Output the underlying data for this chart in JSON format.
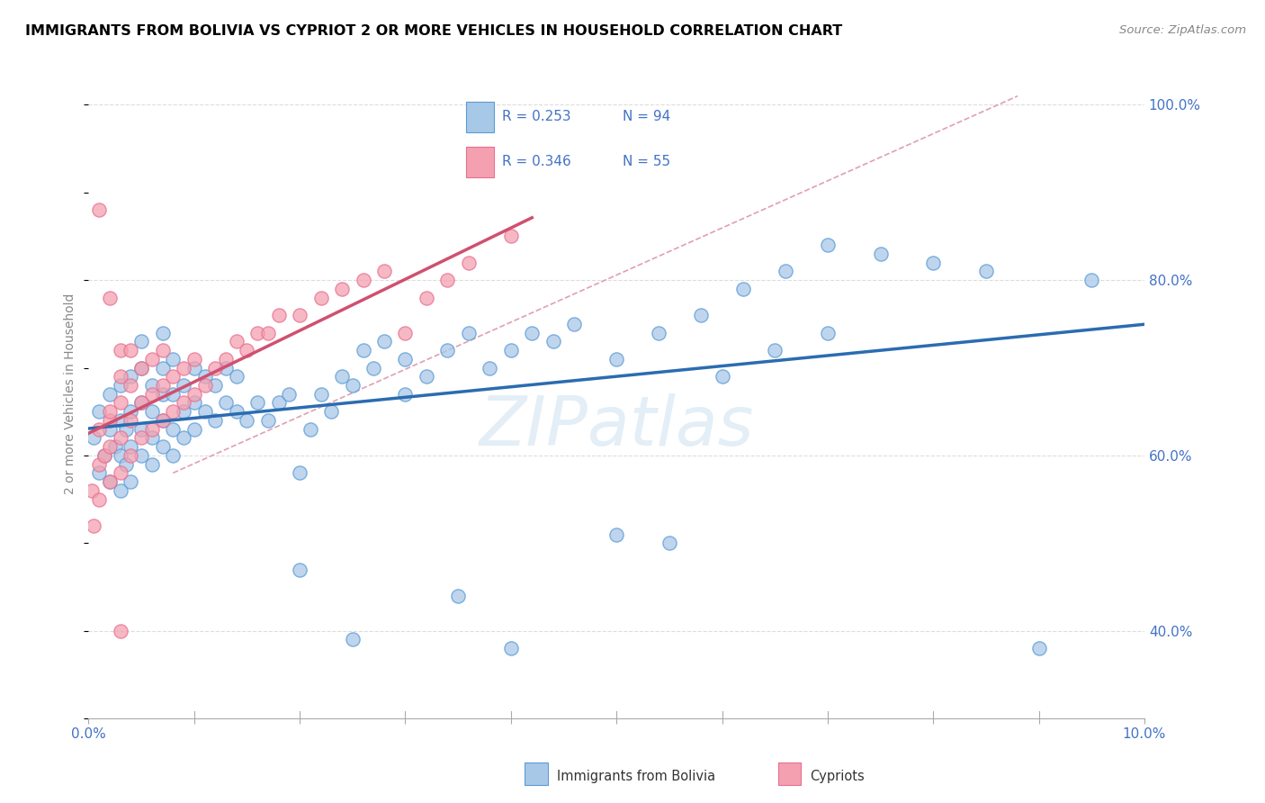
{
  "title": "IMMIGRANTS FROM BOLIVIA VS CYPRIOT 2 OR MORE VEHICLES IN HOUSEHOLD CORRELATION CHART",
  "source": "Source: ZipAtlas.com",
  "ylabel": "2 or more Vehicles in Household",
  "ytick_labels": [
    "40.0%",
    "60.0%",
    "80.0%",
    "100.0%"
  ],
  "ytick_values": [
    0.4,
    0.6,
    0.8,
    1.0
  ],
  "xlim": [
    0.0,
    0.1
  ],
  "ylim": [
    0.3,
    1.04
  ],
  "blue_color": "#a8c8e8",
  "pink_color": "#f4a0b0",
  "blue_edge_color": "#5b9bd5",
  "pink_edge_color": "#e87090",
  "blue_line_color": "#2b6cb0",
  "pink_line_color": "#d05070",
  "dash_line_color": "#e0a0b0",
  "text_blue": "#4472c6",
  "watermark": "ZIPatlas",
  "bolivia_x": [
    0.0005,
    0.001,
    0.001,
    0.0015,
    0.002,
    0.002,
    0.002,
    0.0025,
    0.003,
    0.003,
    0.003,
    0.003,
    0.0035,
    0.0035,
    0.004,
    0.004,
    0.004,
    0.004,
    0.005,
    0.005,
    0.005,
    0.005,
    0.005,
    0.006,
    0.006,
    0.006,
    0.006,
    0.007,
    0.007,
    0.007,
    0.007,
    0.007,
    0.008,
    0.008,
    0.008,
    0.008,
    0.009,
    0.009,
    0.009,
    0.01,
    0.01,
    0.01,
    0.011,
    0.011,
    0.012,
    0.012,
    0.013,
    0.013,
    0.014,
    0.014,
    0.015,
    0.016,
    0.017,
    0.018,
    0.019,
    0.02,
    0.021,
    0.022,
    0.023,
    0.024,
    0.025,
    0.026,
    0.027,
    0.028,
    0.03,
    0.03,
    0.032,
    0.034,
    0.036,
    0.038,
    0.04,
    0.042,
    0.044,
    0.046,
    0.05,
    0.054,
    0.058,
    0.062,
    0.066,
    0.07,
    0.075,
    0.08,
    0.085,
    0.05,
    0.055,
    0.06,
    0.065,
    0.07,
    0.09,
    0.095,
    0.02,
    0.025,
    0.035,
    0.04
  ],
  "bolivia_y": [
    0.62,
    0.58,
    0.65,
    0.6,
    0.57,
    0.63,
    0.67,
    0.61,
    0.56,
    0.6,
    0.64,
    0.68,
    0.59,
    0.63,
    0.57,
    0.61,
    0.65,
    0.69,
    0.6,
    0.63,
    0.66,
    0.7,
    0.73,
    0.59,
    0.62,
    0.65,
    0.68,
    0.61,
    0.64,
    0.67,
    0.7,
    0.74,
    0.6,
    0.63,
    0.67,
    0.71,
    0.62,
    0.65,
    0.68,
    0.63,
    0.66,
    0.7,
    0.65,
    0.69,
    0.64,
    0.68,
    0.66,
    0.7,
    0.65,
    0.69,
    0.64,
    0.66,
    0.64,
    0.66,
    0.67,
    0.58,
    0.63,
    0.67,
    0.65,
    0.69,
    0.68,
    0.72,
    0.7,
    0.73,
    0.67,
    0.71,
    0.69,
    0.72,
    0.74,
    0.7,
    0.72,
    0.74,
    0.73,
    0.75,
    0.71,
    0.74,
    0.76,
    0.79,
    0.81,
    0.84,
    0.83,
    0.82,
    0.81,
    0.51,
    0.5,
    0.69,
    0.72,
    0.74,
    0.38,
    0.8,
    0.47,
    0.39,
    0.44,
    0.38
  ],
  "cypriot_x": [
    0.0003,
    0.0005,
    0.001,
    0.001,
    0.001,
    0.0015,
    0.002,
    0.002,
    0.002,
    0.002,
    0.003,
    0.003,
    0.003,
    0.003,
    0.003,
    0.004,
    0.004,
    0.004,
    0.004,
    0.005,
    0.005,
    0.005,
    0.006,
    0.006,
    0.006,
    0.007,
    0.007,
    0.007,
    0.008,
    0.008,
    0.009,
    0.009,
    0.01,
    0.01,
    0.011,
    0.012,
    0.013,
    0.014,
    0.015,
    0.016,
    0.017,
    0.018,
    0.02,
    0.022,
    0.024,
    0.026,
    0.028,
    0.03,
    0.032,
    0.034,
    0.036,
    0.04,
    0.001,
    0.002,
    0.003
  ],
  "cypriot_y": [
    0.56,
    0.52,
    0.59,
    0.63,
    0.55,
    0.6,
    0.64,
    0.57,
    0.61,
    0.65,
    0.58,
    0.62,
    0.66,
    0.69,
    0.72,
    0.6,
    0.64,
    0.68,
    0.72,
    0.62,
    0.66,
    0.7,
    0.63,
    0.67,
    0.71,
    0.64,
    0.68,
    0.72,
    0.65,
    0.69,
    0.66,
    0.7,
    0.67,
    0.71,
    0.68,
    0.7,
    0.71,
    0.73,
    0.72,
    0.74,
    0.74,
    0.76,
    0.76,
    0.78,
    0.79,
    0.8,
    0.81,
    0.74,
    0.78,
    0.8,
    0.82,
    0.85,
    0.88,
    0.78,
    0.4
  ]
}
